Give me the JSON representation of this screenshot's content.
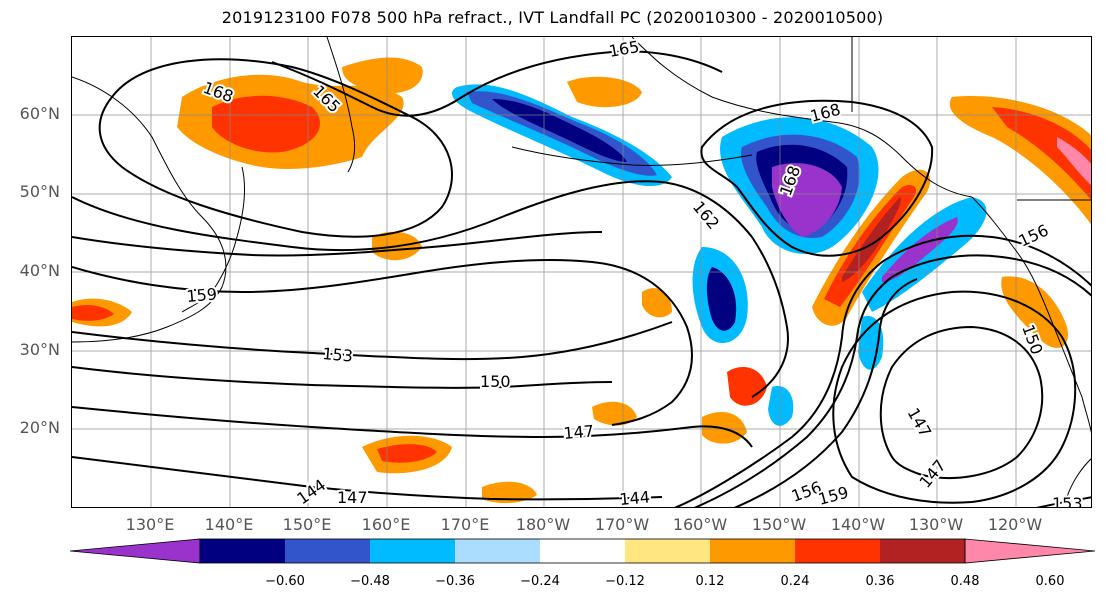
{
  "title": "2019123100 F078 500 hPa refract., IVT Landfall PC (2020010300 - 2020010500)",
  "lat_labels": [
    "60°N",
    "50°N",
    "40°N",
    "30°N",
    "20°N"
  ],
  "lon_labels": [
    "130°E",
    "140°E",
    "150°E",
    "160°E",
    "170°E",
    "180°W",
    "170°W",
    "160°W",
    "150°W",
    "140°W",
    "130°W",
    "120°W"
  ],
  "colorbar": {
    "ticks": [
      "−0.60",
      "−0.48",
      "−0.36",
      "−0.24",
      "−0.12",
      "0.12",
      "0.24",
      "0.36",
      "0.48",
      "0.60"
    ],
    "colors": [
      "#9933cc",
      "#000080",
      "#3355cc",
      "#00bbff",
      "#aaddff",
      "#ffffff",
      "#ffe680",
      "#ff9900",
      "#ff3300",
      "#b22222",
      "#ff88aa"
    ]
  },
  "contour_labels": [
    "168",
    "165",
    "165",
    "168",
    "162",
    "168",
    "156",
    "159",
    "153",
    "150",
    "147",
    "144",
    "147",
    "144",
    "156",
    "159",
    "147",
    "147",
    "150",
    "153"
  ],
  "colors": {
    "land_outline": "#000000",
    "grid": "#888888",
    "contour": "#000000"
  }
}
